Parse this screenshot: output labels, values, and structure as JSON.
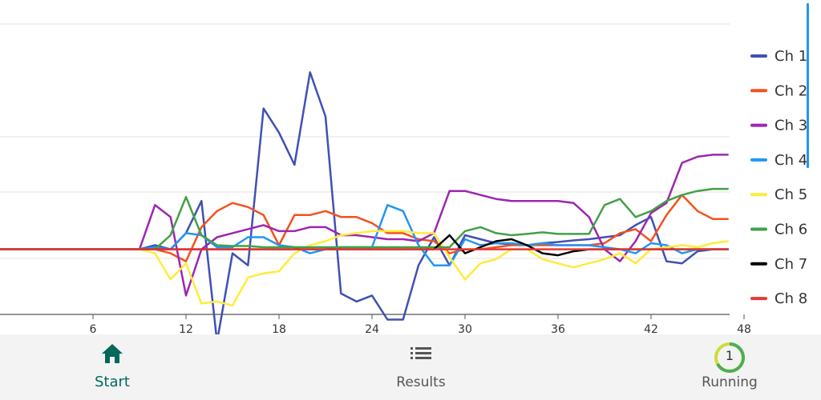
{
  "chart_data": {
    "type": "line",
    "xlim": [
      0,
      48
    ],
    "ylim": [
      -160,
      560
    ],
    "x_ticks": [
      6,
      12,
      18,
      24,
      30,
      36,
      42,
      48
    ],
    "grid": "horizontal",
    "legend_position": "right",
    "series": [
      {
        "name": "Ch 1",
        "color": "#3f51b5",
        "x": [
          0,
          9,
          10,
          11,
          12,
          13,
          14,
          15,
          16,
          17,
          18,
          19,
          20,
          21,
          22,
          23,
          24,
          25,
          26,
          27,
          28,
          29,
          30,
          31,
          32,
          33,
          34,
          35,
          36,
          37,
          38,
          39,
          40,
          41,
          42,
          43,
          44,
          45,
          46,
          47
        ],
        "y": [
          0,
          0,
          10,
          0,
          40,
          120,
          -230,
          -10,
          -40,
          350,
          290,
          210,
          440,
          330,
          -110,
          -130,
          -115,
          -175,
          -175,
          -40,
          30,
          -40,
          35,
          25,
          15,
          12,
          10,
          15,
          18,
          22,
          25,
          30,
          35,
          60,
          80,
          -30,
          -35,
          -5,
          0,
          0
        ]
      },
      {
        "name": "Ch 2",
        "color": "#f4511e",
        "x": [
          0,
          9,
          10,
          11,
          12,
          13,
          14,
          15,
          16,
          17,
          18,
          19,
          20,
          21,
          22,
          23,
          24,
          25,
          26,
          27,
          28,
          29,
          30,
          31,
          32,
          33,
          34,
          35,
          36,
          37,
          38,
          39,
          40,
          41,
          42,
          43,
          44,
          45,
          46,
          47
        ],
        "y": [
          0,
          0,
          0,
          -10,
          -30,
          55,
          95,
          115,
          105,
          85,
          10,
          85,
          85,
          95,
          80,
          80,
          65,
          40,
          40,
          25,
          20,
          -10,
          0,
          0,
          5,
          10,
          10,
          10,
          10,
          10,
          10,
          15,
          40,
          50,
          20,
          85,
          135,
          95,
          75,
          75
        ]
      },
      {
        "name": "Ch 3",
        "color": "#9c27b0",
        "x": [
          0,
          9,
          10,
          11,
          12,
          13,
          14,
          15,
          16,
          17,
          18,
          19,
          20,
          21,
          22,
          23,
          24,
          25,
          26,
          27,
          28,
          29,
          30,
          31,
          32,
          33,
          34,
          35,
          36,
          37,
          38,
          39,
          40,
          41,
          42,
          43,
          44,
          45,
          46,
          47
        ],
        "y": [
          0,
          0,
          110,
          80,
          -115,
          0,
          30,
          40,
          50,
          60,
          45,
          45,
          55,
          55,
          35,
          35,
          30,
          25,
          25,
          20,
          40,
          145,
          145,
          135,
          125,
          120,
          120,
          120,
          120,
          115,
          80,
          0,
          -30,
          20,
          90,
          115,
          215,
          230,
          235,
          235
        ]
      },
      {
        "name": "Ch 4",
        "color": "#2196f3",
        "x": [
          0,
          9,
          10,
          11,
          12,
          13,
          14,
          15,
          16,
          17,
          18,
          19,
          20,
          21,
          22,
          23,
          24,
          25,
          26,
          27,
          28,
          29,
          30,
          31,
          32,
          33,
          34,
          35,
          36,
          37,
          38,
          39,
          40,
          41,
          42,
          43,
          44,
          45,
          46,
          47
        ],
        "y": [
          0,
          0,
          5,
          0,
          40,
          35,
          5,
          5,
          30,
          30,
          10,
          5,
          -10,
          0,
          5,
          5,
          5,
          110,
          95,
          10,
          -40,
          -40,
          25,
          10,
          15,
          15,
          10,
          15,
          10,
          10,
          10,
          5,
          0,
          -10,
          15,
          10,
          -10,
          0,
          0,
          0
        ]
      },
      {
        "name": "Ch 5",
        "color": "#ffeb3b",
        "x": [
          0,
          9,
          10,
          11,
          12,
          13,
          14,
          15,
          16,
          17,
          18,
          19,
          20,
          21,
          22,
          23,
          24,
          25,
          26,
          27,
          28,
          29,
          30,
          31,
          32,
          33,
          34,
          35,
          36,
          37,
          38,
          39,
          40,
          41,
          42,
          43,
          44,
          45,
          46,
          47
        ],
        "y": [
          0,
          0,
          -10,
          -75,
          -35,
          -135,
          -130,
          -140,
          -70,
          -60,
          -55,
          -10,
          10,
          20,
          35,
          40,
          45,
          45,
          45,
          40,
          40,
          -20,
          -75,
          -35,
          -25,
          0,
          0,
          -25,
          -35,
          -45,
          -35,
          -25,
          -10,
          -35,
          0,
          5,
          10,
          5,
          15,
          20
        ]
      },
      {
        "name": "Ch 6",
        "color": "#43a047",
        "x": [
          0,
          9,
          10,
          11,
          12,
          13,
          14,
          15,
          16,
          17,
          18,
          19,
          20,
          21,
          22,
          23,
          24,
          25,
          26,
          27,
          28,
          29,
          30,
          31,
          32,
          33,
          34,
          35,
          36,
          37,
          38,
          39,
          40,
          41,
          42,
          43,
          44,
          45,
          46,
          47
        ],
        "y": [
          0,
          0,
          0,
          35,
          130,
          35,
          10,
          8,
          8,
          5,
          5,
          5,
          5,
          5,
          5,
          5,
          5,
          5,
          5,
          5,
          5,
          5,
          45,
          55,
          40,
          35,
          38,
          42,
          38,
          38,
          38,
          110,
          125,
          80,
          95,
          120,
          135,
          145,
          150,
          150
        ]
      },
      {
        "name": "Ch 7",
        "color": "#000000",
        "x": [
          0,
          9,
          10,
          11,
          12,
          13,
          14,
          15,
          16,
          17,
          18,
          19,
          20,
          21,
          22,
          23,
          24,
          25,
          26,
          27,
          28,
          29,
          30,
          31,
          32,
          33,
          34,
          35,
          36,
          37,
          38,
          39,
          40,
          41,
          42,
          43,
          44,
          45,
          46,
          47
        ],
        "y": [
          0,
          0,
          0,
          0,
          0,
          0,
          0,
          0,
          0,
          0,
          0,
          0,
          0,
          0,
          0,
          0,
          0,
          0,
          0,
          0,
          0,
          35,
          -10,
          5,
          20,
          25,
          10,
          -10,
          -15,
          -5,
          0,
          0,
          0,
          0,
          0,
          0,
          0,
          0,
          0,
          0
        ]
      },
      {
        "name": "Ch 8",
        "color": "#e53935",
        "x": [
          0,
          47
        ],
        "y": [
          0,
          0
        ]
      }
    ]
  },
  "nav": {
    "start_label": "Start",
    "results_label": "Results",
    "running_label": "Running",
    "running_count": "1"
  },
  "icons": [
    "home-icon",
    "list-icon",
    "progress-ring-icon"
  ],
  "colors": {
    "active": "#00695c",
    "ring_track": "#cddc39",
    "ring_progress": "#4caf50"
  }
}
